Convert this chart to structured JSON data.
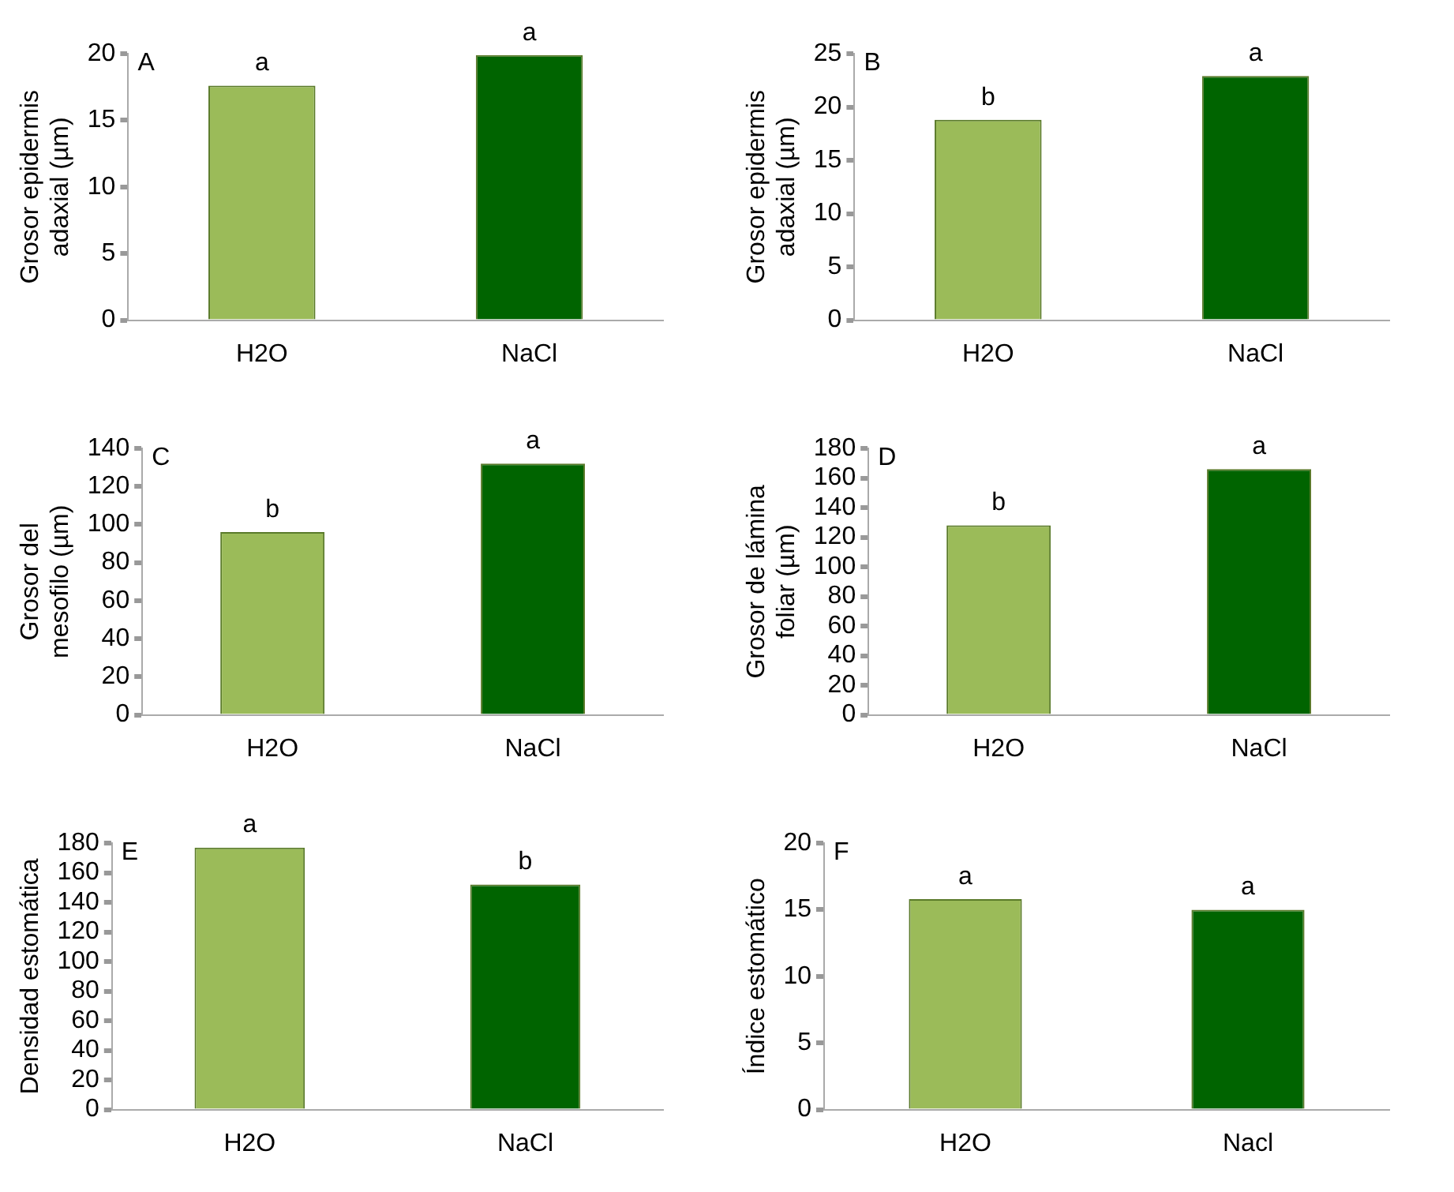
{
  "chart_data": [
    {
      "type": "bar",
      "ylabel": "Grosor epidermis adaxial (µm)",
      "categories": [
        "H2O",
        "NaCl"
      ],
      "values": [
        17.6,
        19.9
      ],
      "colors": [
        "#9bbb59",
        "#006400"
      ],
      "ylim": [
        0,
        20
      ],
      "yticks": [
        0,
        5,
        10,
        15,
        20
      ],
      "grid": false,
      "legend": false,
      "annotations": [
        "A",
        {
          "text": "a",
          "x": "H2O",
          "y": 17.6
        },
        {
          "text": "a",
          "x": "NaCl",
          "y": 19.9
        }
      ]
    },
    {
      "type": "bar",
      "ylabel": "Grosor epidermis adaxial (µm)",
      "categories": [
        "H2O",
        "NaCl"
      ],
      "values": [
        18.8,
        22.9
      ],
      "colors": [
        "#9bbb59",
        "#006400"
      ],
      "ylim": [
        0,
        25
      ],
      "yticks": [
        0,
        5,
        10,
        15,
        20,
        25
      ],
      "grid": false,
      "legend": false,
      "annotations": [
        "B",
        {
          "text": "b",
          "x": "H2O",
          "y": 18.8
        },
        {
          "text": "a",
          "x": "NaCl",
          "y": 22.9
        }
      ]
    },
    {
      "type": "bar",
      "ylabel": "Grosor del mesofilo (µm)",
      "categories": [
        "H2O",
        "NaCl"
      ],
      "values": [
        96,
        132
      ],
      "colors": [
        "#9bbb59",
        "#006400"
      ],
      "ylim": [
        0,
        140
      ],
      "yticks": [
        0,
        20,
        40,
        60,
        80,
        100,
        120,
        140
      ],
      "grid": false,
      "legend": false,
      "annotations": [
        "C",
        {
          "text": "b",
          "x": "H2O",
          "y": 96
        },
        {
          "text": "a",
          "x": "NaCl",
          "y": 132
        }
      ]
    },
    {
      "type": "bar",
      "ylabel": "Grosor de lámina foliar (µm)",
      "categories": [
        "H2O",
        "NaCl"
      ],
      "values": [
        128,
        166
      ],
      "colors": [
        "#9bbb59",
        "#006400"
      ],
      "ylim": [
        0,
        180
      ],
      "yticks": [
        0,
        20,
        40,
        60,
        80,
        100,
        120,
        140,
        160,
        180
      ],
      "grid": false,
      "legend": false,
      "annotations": [
        "D",
        {
          "text": "b",
          "x": "H2O",
          "y": 128
        },
        {
          "text": "a",
          "x": "NaCl",
          "y": 166
        }
      ]
    },
    {
      "type": "bar",
      "ylabel": "Densidad estomática",
      "categories": [
        "H2O",
        "NaCl"
      ],
      "values": [
        177,
        152
      ],
      "colors": [
        "#9bbb59",
        "#006400"
      ],
      "ylim": [
        0,
        180
      ],
      "yticks": [
        0,
        20,
        40,
        60,
        80,
        100,
        120,
        140,
        160,
        180
      ],
      "grid": false,
      "legend": false,
      "annotations": [
        "E",
        {
          "text": "a",
          "x": "H2O",
          "y": 177
        },
        {
          "text": "b",
          "x": "NaCl",
          "y": 152
        }
      ]
    },
    {
      "type": "bar",
      "ylabel": "Índice estomático",
      "categories": [
        "H2O",
        "Nacl"
      ],
      "values": [
        15.8,
        15.0
      ],
      "colors": [
        "#9bbb59",
        "#006400"
      ],
      "ylim": [
        0,
        20
      ],
      "yticks": [
        0,
        5,
        10,
        15,
        20
      ],
      "grid": false,
      "legend": false,
      "annotations": [
        "F",
        {
          "text": "a",
          "x": "H2O",
          "y": 15.8
        },
        {
          "text": "a",
          "x": "Nacl",
          "y": 15.0
        }
      ]
    }
  ]
}
